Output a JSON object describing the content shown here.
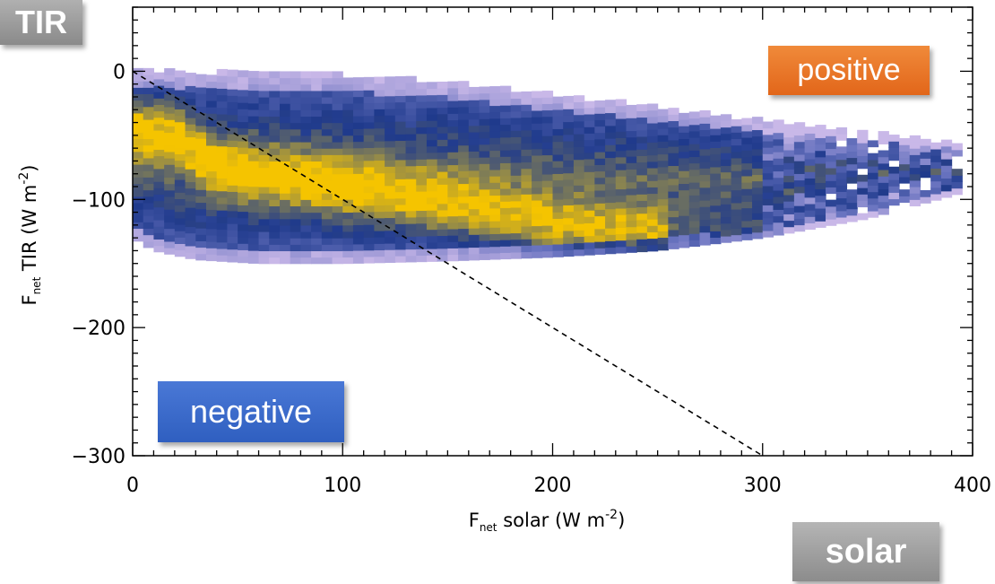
{
  "chart_data": {
    "type": "heatmap",
    "xlabel": {
      "main": "F",
      "sub": "net",
      "rest": " solar (W m",
      "sup": "-2",
      "end": ")"
    },
    "ylabel": {
      "main": "F",
      "sub": "net",
      "rest": " TIR (W m",
      "sup": "-2",
      "end": ")"
    },
    "xlim": [
      0,
      400
    ],
    "ylim": [
      -300,
      50
    ],
    "xticks": [
      {
        "value": 0,
        "label": "0"
      },
      {
        "value": 100,
        "label": "100"
      },
      {
        "value": 200,
        "label": "200"
      },
      {
        "value": 300,
        "label": "300"
      },
      {
        "value": 400,
        "label": "400"
      }
    ],
    "yticks": [
      {
        "value": 0,
        "label": "0"
      },
      {
        "value": -100,
        "label": "−100"
      },
      {
        "value": -200,
        "label": "−200"
      },
      {
        "value": -300,
        "label": "−300"
      }
    ],
    "reference_line": {
      "style": "dashed",
      "from": [
        0,
        0
      ],
      "to": [
        300,
        -300
      ],
      "meaning": "y = -x"
    },
    "density_colors": {
      "low": "#c9b8e8",
      "mid_low": "#6a74c0",
      "mid": "#1f3a8c",
      "mid_high": "#8a8450",
      "high": "#f5c400"
    },
    "distribution": {
      "envelope_x": [
        0,
        10,
        30,
        60,
        100,
        150,
        200,
        250,
        300,
        350,
        395
      ],
      "envelope_top": [
        -2,
        -2,
        -3,
        -3,
        -5,
        -10,
        -20,
        -30,
        -40,
        -50,
        -58
      ],
      "envelope_bottom": [
        -130,
        -140,
        -147,
        -150,
        -150,
        -148,
        -145,
        -140,
        -130,
        -115,
        -95
      ],
      "ridge": [
        {
          "x": 20,
          "y": -45
        },
        {
          "x": 40,
          "y": -75
        },
        {
          "x": 80,
          "y": -85
        },
        {
          "x": 120,
          "y": -95
        },
        {
          "x": 160,
          "y": -105
        },
        {
          "x": 205,
          "y": -120
        },
        {
          "x": 240,
          "y": -125
        }
      ]
    }
  },
  "labels": {
    "tir": "TIR",
    "solar": "solar",
    "positive": "positive",
    "negative": "negative"
  }
}
